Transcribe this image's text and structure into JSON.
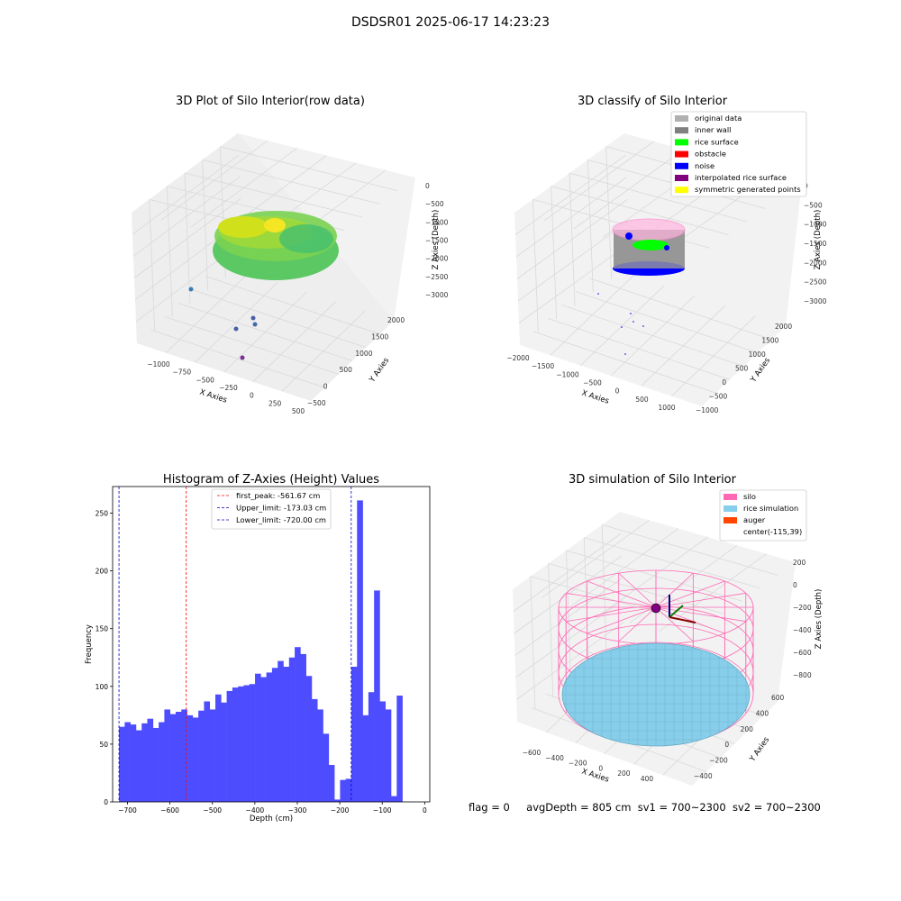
{
  "figure_title": "DSDSR01 2025-06-17 14:23:23",
  "status": {
    "flag": "flag = 0",
    "avg_depth": "avgDepth = 805 cm",
    "sv1": "sv1 = 700~2300",
    "sv2": "sv2 = 700~2300"
  },
  "colors": {
    "hist_bar": "#4d4dff",
    "first_peak": "#ff0000",
    "limits": "#0000cc",
    "silo": "#ff69b4",
    "rice_sim": "#87ceeb",
    "auger": "#ff4500",
    "original_data": "#b0b0b0",
    "inner_wall": "#808080",
    "rice_surface": "#00ff00",
    "obstacle": "#ff0000",
    "noise": "#0000ff",
    "interpolated": "#800080",
    "symmetric": "#ffff00"
  },
  "chart_data": [
    {
      "type": "scatter",
      "title": "3D Plot of Silo Interior(row data)",
      "xlabel": "X Axies",
      "ylabel": "Y Axies",
      "zlabel": "Z Axies (Depth)",
      "x_ticks": [
        "−1000",
        "−750",
        "−500",
        "−250",
        "0",
        "250",
        "500"
      ],
      "y_ticks": [
        "−500",
        "0",
        "500",
        "1000",
        "1500",
        "2000"
      ],
      "z_ticks": [
        "0",
        "−500",
        "−1000",
        "−1500",
        "−2000",
        "−2500",
        "−3000"
      ]
    },
    {
      "type": "scatter",
      "title": "3D classify of Silo Interior",
      "xlabel": "X Axies",
      "ylabel": "Y Axies",
      "zlabel": "Z Axies (Depth)",
      "x_ticks": [
        "−2000",
        "−1500",
        "−1000",
        "−500",
        "0",
        "500",
        "1000"
      ],
      "y_ticks": [
        "−1000",
        "−500",
        "0",
        "500",
        "1000",
        "1500",
        "2000"
      ],
      "z_ticks": [
        "0",
        "−500",
        "−1000",
        "−1500",
        "−2000",
        "−2500",
        "−3000"
      ],
      "legend": [
        "original data",
        "inner wall",
        "rice surface",
        "obstacle",
        "noise",
        "interpolated rice surface",
        "symmetric generated points"
      ],
      "legend_placement": "top-right"
    },
    {
      "type": "bar",
      "title": "Histogram of Z-Axies (Height) Values",
      "xlabel": "Depth (cm)",
      "ylabel": "Frequency",
      "xlim": [
        -735,
        12
      ],
      "ylim": [
        0,
        273
      ],
      "x_ticks": [
        -700,
        -600,
        -500,
        -400,
        -300,
        -200,
        -100,
        0
      ],
      "x_tick_labels": [
        "−700",
        "−600",
        "−500",
        "−400",
        "−300",
        "−200",
        "−100",
        "0"
      ],
      "y_ticks": [
        0,
        50,
        100,
        150,
        200,
        250
      ],
      "bin_start": -720,
      "bin_width": 13.35,
      "values": [
        65,
        69,
        67,
        62,
        68,
        72,
        64,
        69,
        80,
        76,
        78,
        80,
        75,
        73,
        79,
        87,
        80,
        93,
        86,
        96,
        99,
        100,
        101,
        102,
        111,
        108,
        112,
        116,
        122,
        117,
        125,
        134,
        128,
        109,
        89,
        80,
        59,
        32,
        2,
        19,
        20,
        117,
        261,
        75,
        95,
        183,
        87,
        80,
        5,
        92
      ],
      "vlines": [
        {
          "label": "first_peak: -561.67 cm",
          "x": -561.67
        },
        {
          "label": "Upper_limit: -173.03 cm",
          "x": -173.03
        },
        {
          "label": "Lower_limit: -720.00 cm",
          "x": -720.0
        }
      ],
      "legend_placement": "upper-center"
    },
    {
      "type": "scatter",
      "title": "3D simulation of Silo Interior",
      "xlabel": "X Axies",
      "ylabel": "Y Axies",
      "zlabel": "Z Axies (Depth)",
      "x_ticks": [
        "−600",
        "−400",
        "−200",
        "0",
        "200",
        "400"
      ],
      "y_ticks": [
        "−400",
        "−200",
        "0",
        "200",
        "400",
        "600"
      ],
      "z_ticks": [
        "200",
        "0",
        "−200",
        "−400",
        "−600",
        "−800"
      ],
      "legend": [
        "silo",
        "rice simulation",
        "auger",
        "center(-115,39)"
      ],
      "legend_placement": "top-right"
    }
  ]
}
